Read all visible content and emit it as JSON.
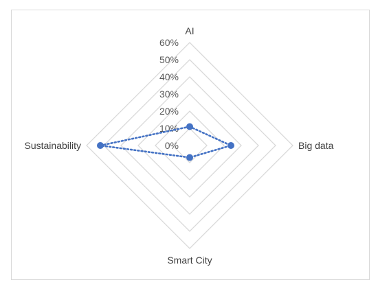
{
  "chart_data": {
    "type": "radar",
    "title": "",
    "categories": [
      "AI",
      "Big data",
      "Smart City",
      "Sustainability"
    ],
    "axis": {
      "min": 0,
      "max": 60,
      "step": 10,
      "tick_labels": [
        "0%",
        "10%",
        "20%",
        "30%",
        "40%",
        "50%",
        "60%"
      ]
    },
    "grid": true,
    "legend": "none",
    "series": [
      {
        "values": [
          11,
          24,
          7,
          52
        ],
        "color": "#4472C4",
        "line_style": "dotted",
        "marker": "circle"
      }
    ],
    "grid_color": "#d9d9d9"
  }
}
